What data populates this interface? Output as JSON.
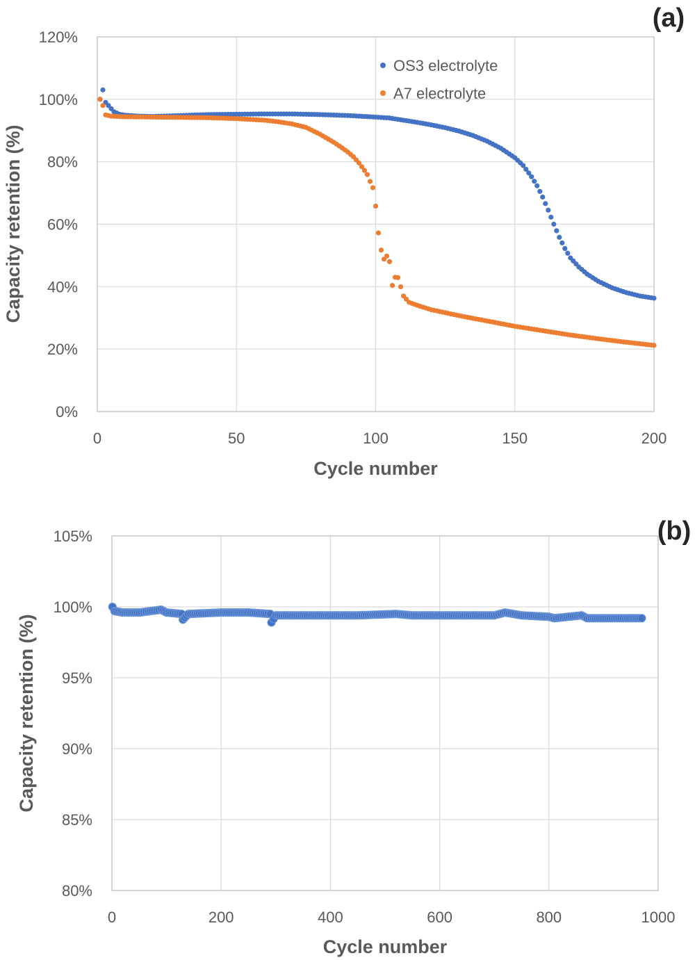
{
  "chart_data": [
    {
      "type": "scatter",
      "panel_label": "(a)",
      "xlabel": "Cycle number",
      "ylabel": "Capacity retention (%)",
      "xlim": [
        0,
        200
      ],
      "ylim": [
        0,
        120
      ],
      "x_ticks": [
        0,
        50,
        100,
        150,
        200
      ],
      "x_tick_labels": [
        "0",
        "50",
        "100",
        "150",
        "200"
      ],
      "y_ticks": [
        0,
        20,
        40,
        60,
        80,
        100,
        120
      ],
      "y_tick_labels": [
        "0%",
        "20%",
        "40%",
        "60%",
        "80%",
        "100%",
        "120%"
      ],
      "grid": true,
      "legend_position": "top-right",
      "series": [
        {
          "name": "OS3 electrolyte",
          "color": "#4472C4",
          "points": [
            [
              1,
              100
            ],
            [
              2,
              103
            ],
            [
              3,
              99
            ],
            [
              4,
              98
            ],
            [
              5,
              97
            ],
            [
              6,
              96
            ],
            [
              8,
              95.2
            ],
            [
              10,
              94.9
            ],
            [
              15,
              94.6
            ],
            [
              20,
              94.5
            ],
            [
              30,
              94.8
            ],
            [
              40,
              95.1
            ],
            [
              50,
              95.2
            ],
            [
              60,
              95.3
            ],
            [
              70,
              95.3
            ],
            [
              80,
              95.1
            ],
            [
              90,
              94.8
            ],
            [
              100,
              94.3
            ],
            [
              105,
              94
            ],
            [
              110,
              93.3
            ],
            [
              115,
              92.6
            ],
            [
              120,
              91.8
            ],
            [
              125,
              90.9
            ],
            [
              130,
              89.8
            ],
            [
              135,
              88.4
            ],
            [
              140,
              86.6
            ],
            [
              145,
              84.3
            ],
            [
              150,
              81.3
            ],
            [
              153,
              78.8
            ],
            [
              156,
              75.2
            ],
            [
              158,
              72.3
            ],
            [
              160,
              68.7
            ],
            [
              162,
              64.5
            ],
            [
              164,
              60
            ],
            [
              166,
              55.8
            ],
            [
              168,
              52.2
            ],
            [
              170,
              49.2
            ],
            [
              173,
              46.3
            ],
            [
              176,
              44
            ],
            [
              180,
              41.7
            ],
            [
              185,
              39.6
            ],
            [
              190,
              38.1
            ],
            [
              195,
              37
            ],
            [
              200,
              36.3
            ]
          ]
        },
        {
          "name": "A7 electrolyte",
          "color": "#ED7D31",
          "points": [
            [
              1,
              100
            ],
            [
              2,
              98
            ],
            [
              3,
              95
            ],
            [
              5,
              94.6
            ],
            [
              10,
              94.4
            ],
            [
              20,
              94.3
            ],
            [
              30,
              94.2
            ],
            [
              40,
              94.1
            ],
            [
              50,
              93.8
            ],
            [
              60,
              93.3
            ],
            [
              65,
              92.8
            ],
            [
              70,
              92.1
            ],
            [
              75,
              91
            ],
            [
              80,
              88.8
            ],
            [
              85,
              86.2
            ],
            [
              88,
              84.4
            ],
            [
              90,
              83.1
            ],
            [
              92,
              81.6
            ],
            [
              94,
              79.6
            ],
            [
              96,
              77.2
            ],
            [
              97,
              75.9
            ],
            [
              98,
              73.7
            ],
            [
              99,
              71.7
            ],
            [
              100,
              65.8
            ],
            [
              101,
              57.2
            ],
            [
              102,
              51.7
            ],
            [
              103,
              48.8
            ],
            [
              104,
              49.8
            ],
            [
              105,
              48
            ],
            [
              106,
              40.4
            ],
            [
              107,
              43
            ],
            [
              108,
              42.9
            ],
            [
              110,
              37
            ],
            [
              112,
              35
            ],
            [
              115,
              34
            ],
            [
              120,
              32.6
            ],
            [
              130,
              30.7
            ],
            [
              140,
              29
            ],
            [
              150,
              27.3
            ],
            [
              160,
              25.9
            ],
            [
              170,
              24.5
            ],
            [
              180,
              23.3
            ],
            [
              190,
              22.2
            ],
            [
              200,
              21.2
            ]
          ]
        }
      ]
    },
    {
      "type": "scatter",
      "panel_label": "(b)",
      "xlabel": "Cycle number",
      "ylabel": "Capacity retention (%)",
      "xlim": [
        0,
        1000
      ],
      "ylim": [
        80,
        105
      ],
      "x_ticks": [
        0,
        200,
        400,
        600,
        800,
        1000
      ],
      "x_tick_labels": [
        "0",
        "200",
        "400",
        "600",
        "800",
        "1000"
      ],
      "y_ticks": [
        80,
        85,
        90,
        95,
        100,
        105
      ],
      "y_tick_labels": [
        "80%",
        "85%",
        "90%",
        "95%",
        "100%",
        "105%"
      ],
      "grid": true,
      "series": [
        {
          "color": "#4472C4",
          "points": [
            [
              1,
              100
            ],
            [
              5,
              99.7
            ],
            [
              20,
              99.6
            ],
            [
              50,
              99.6
            ],
            [
              90,
              99.8
            ],
            [
              100,
              99.6
            ],
            [
              128,
              99.5
            ],
            [
              130,
              99.1
            ],
            [
              140,
              99.5
            ],
            [
              200,
              99.6
            ],
            [
              250,
              99.6
            ],
            [
              290,
              99.5
            ],
            [
              292,
              98.9
            ],
            [
              300,
              99.4
            ],
            [
              350,
              99.4
            ],
            [
              400,
              99.4
            ],
            [
              450,
              99.4
            ],
            [
              520,
              99.5
            ],
            [
              550,
              99.4
            ],
            [
              600,
              99.4
            ],
            [
              650,
              99.4
            ],
            [
              700,
              99.4
            ],
            [
              720,
              99.6
            ],
            [
              750,
              99.4
            ],
            [
              800,
              99.3
            ],
            [
              810,
              99.2
            ],
            [
              860,
              99.4
            ],
            [
              870,
              99.2
            ],
            [
              900,
              99.2
            ],
            [
              940,
              99.2
            ],
            [
              970,
              99.2
            ]
          ]
        }
      ]
    }
  ]
}
